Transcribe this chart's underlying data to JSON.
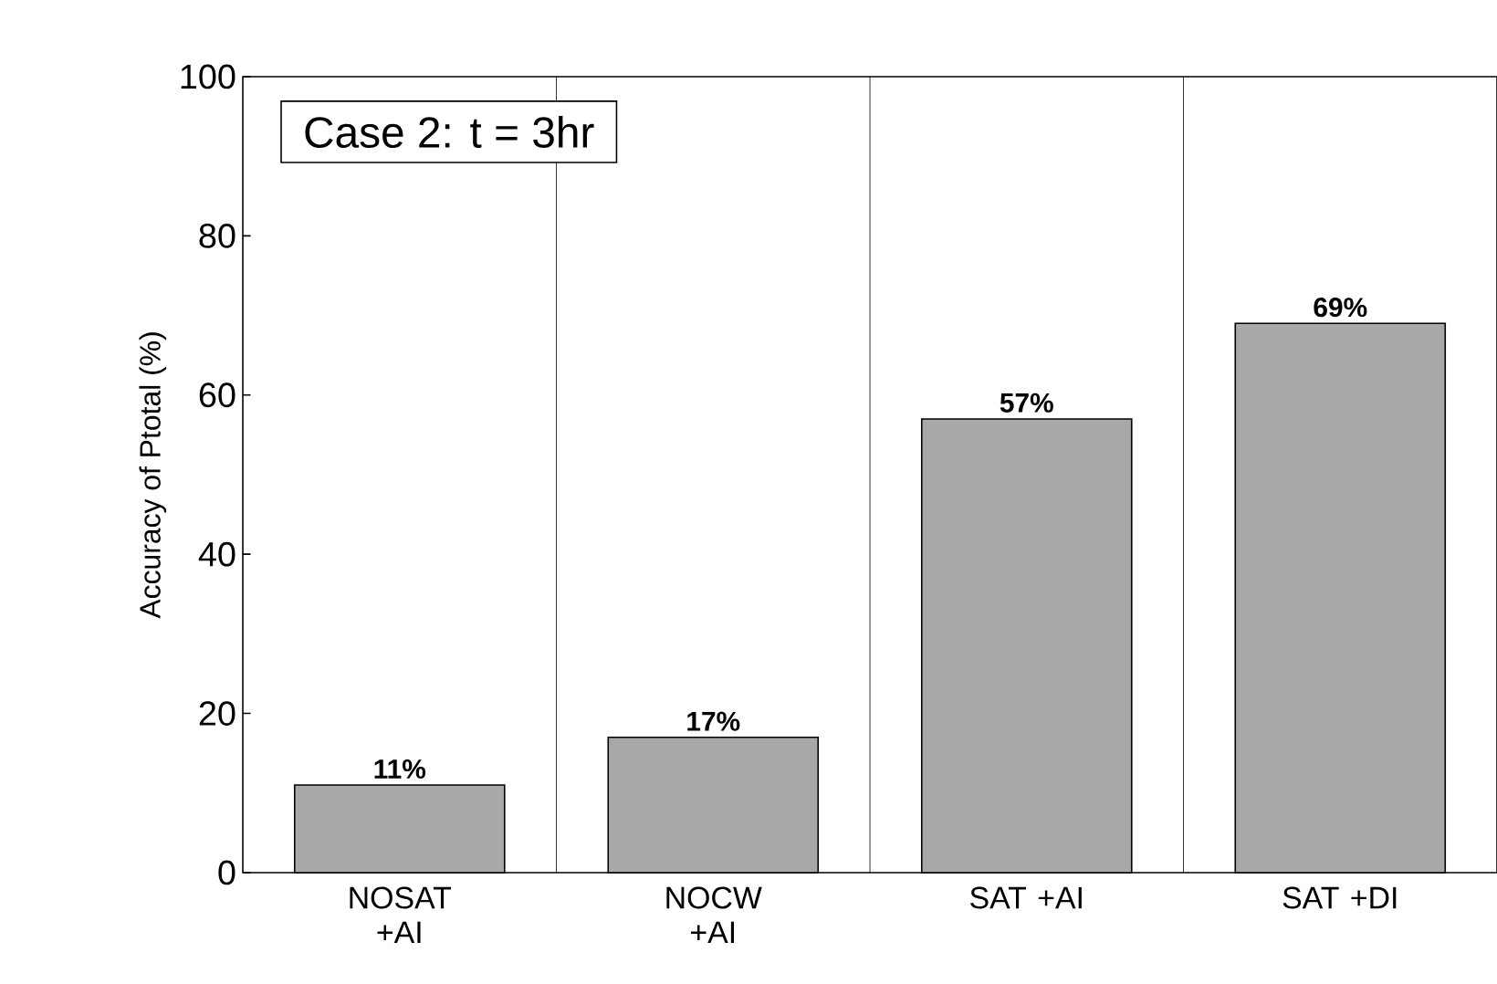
{
  "chart_data": {
    "type": "bar",
    "title": "Case 2: t = 3hr",
    "ylabel": "Accuracy of Ptotal (%)",
    "categories": [
      "NOSAT +AI",
      "NOCW +AI",
      "SAT +AI",
      "SAT +DI"
    ],
    "values": [
      11,
      17,
      57,
      69
    ],
    "value_labels": [
      "11%",
      "17%",
      "57%",
      "69%"
    ],
    "color": "#a8a8a8",
    "ylim": [
      0,
      100
    ],
    "yticks": [
      0,
      20,
      40,
      60,
      80,
      100
    ],
    "grid": "x"
  }
}
